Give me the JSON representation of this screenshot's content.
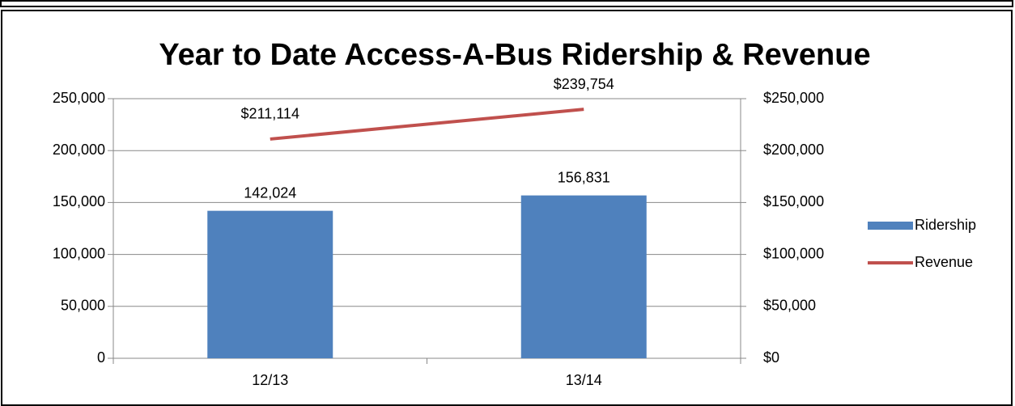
{
  "chart_data": {
    "type": "bar",
    "title": "Year to Date Access-A-Bus Ridership & Revenue",
    "categories": [
      "12/13",
      "13/14"
    ],
    "series": [
      {
        "name": "Ridership",
        "type": "bar",
        "color": "#4f81bd",
        "values": [
          142024,
          156831
        ],
        "value_labels": [
          "142,024",
          "156,831"
        ]
      },
      {
        "name": "Revenue",
        "type": "line",
        "axis": "y2",
        "color": "#c0504d",
        "values": [
          211114,
          239754
        ],
        "value_labels": [
          "$211,114",
          "$239,754"
        ]
      }
    ],
    "ylim": [
      0,
      250000
    ],
    "yticks": [
      0,
      {
        "value": 50000,
        "label": "50,000"
      },
      {
        "value": 100000,
        "label": "100,000"
      },
      {
        "value": 150000,
        "label": "150,000"
      },
      {
        "value": 200000,
        "label": "200,000"
      },
      {
        "value": 250000,
        "label": "250,000"
      }
    ],
    "y2lim": [
      0,
      250000
    ],
    "y2ticks": [
      {
        "value": 0,
        "label": "$0"
      },
      {
        "value": 50000,
        "label": "$50,000"
      },
      {
        "value": 100000,
        "label": "$100,000"
      },
      {
        "value": 150000,
        "label": "$150,000"
      },
      {
        "value": 200000,
        "label": "$200,000"
      },
      {
        "value": 250000,
        "label": "$250,000"
      }
    ],
    "grid": true,
    "legend": "right"
  }
}
